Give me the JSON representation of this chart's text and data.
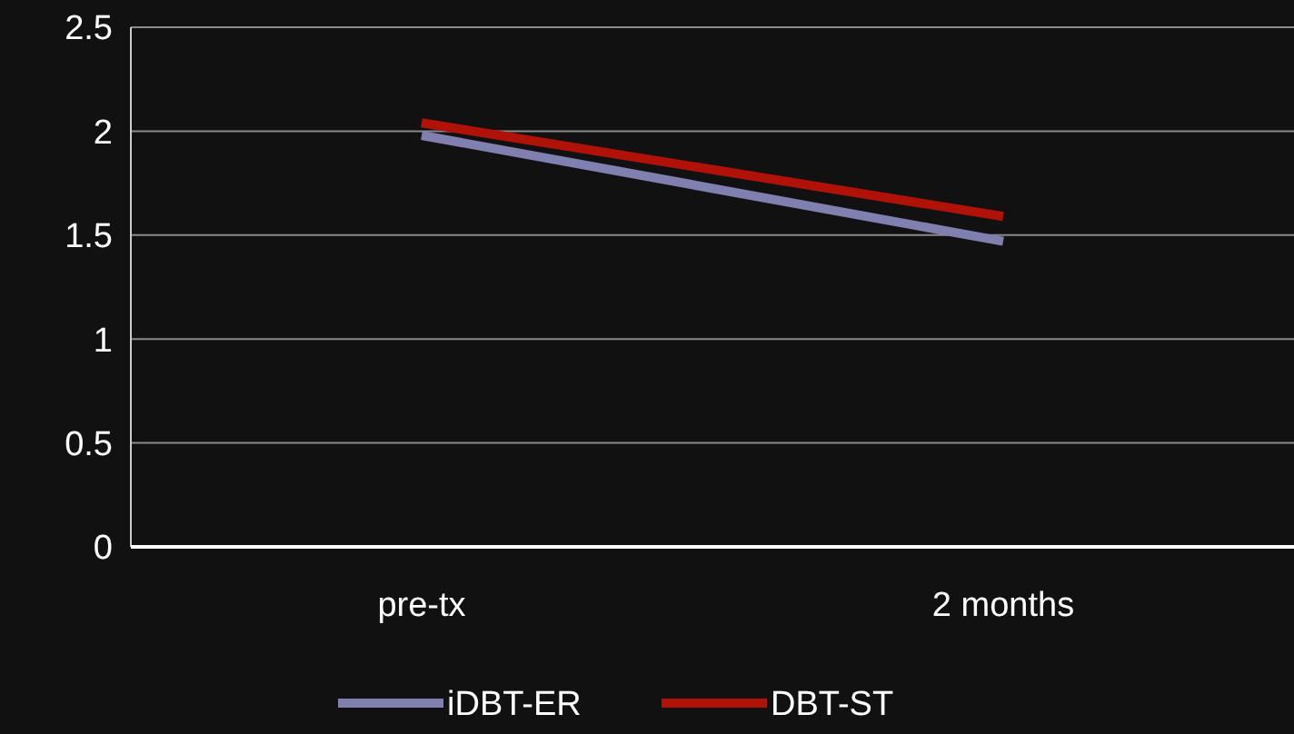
{
  "chart_data": {
    "type": "line",
    "categories": [
      "pre-tx",
      "2 months"
    ],
    "series": [
      {
        "name": "iDBT-ER",
        "color": "#8080b0",
        "values": [
          1.98,
          1.47
        ]
      },
      {
        "name": "DBT-ST",
        "color": "#b01208",
        "values": [
          2.04,
          1.59
        ]
      }
    ],
    "ylim": [
      0,
      2.5
    ],
    "yticks": [
      0,
      0.5,
      1,
      1.5,
      2,
      2.5
    ],
    "grid": "y",
    "legend": "bottom",
    "marker": "none",
    "line_style": "solid"
  }
}
